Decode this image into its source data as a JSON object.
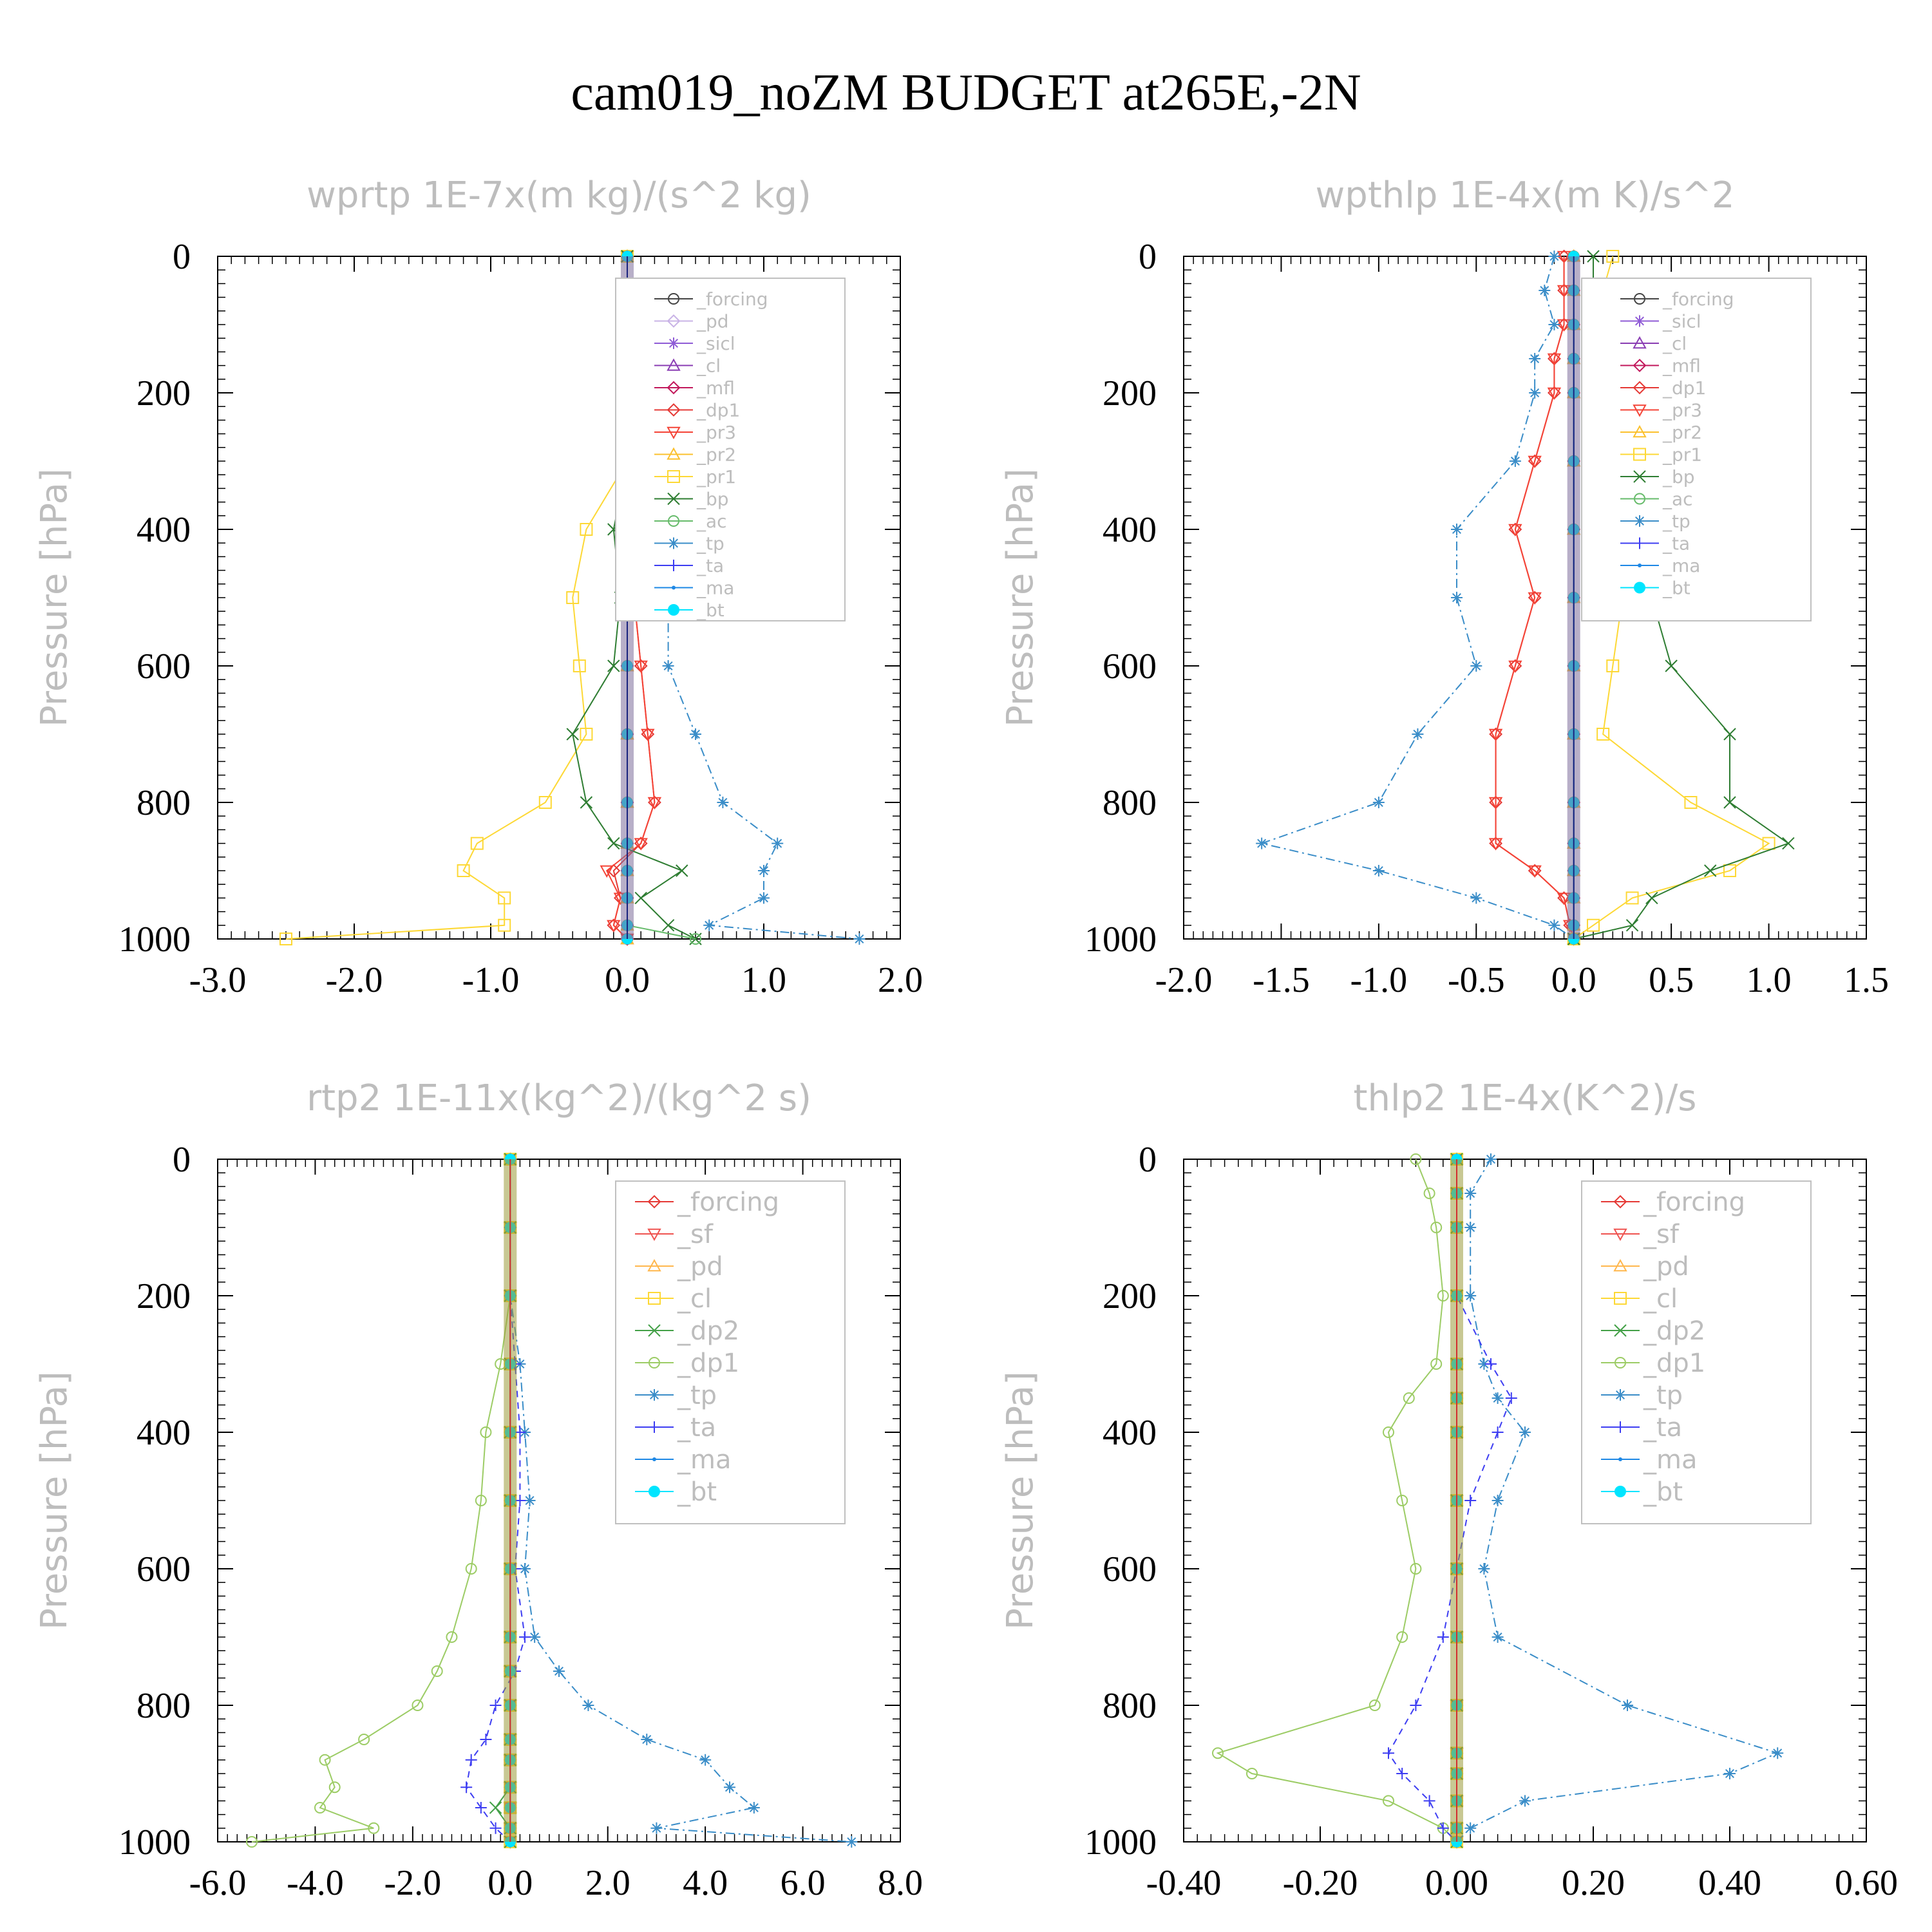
{
  "title": "cam019_noZM  BUDGET at265E,-2N",
  "colors": {
    "axis": "#000000",
    "label_grey": "#bdbdbd",
    "forcing": "#444444",
    "pd": "#c9b3e6",
    "sicl": "#8f5bd6",
    "cl": "#8a3db3",
    "mfl": "#c2185b",
    "dp1": "#e53935",
    "pr3": "#f44336",
    "pr2": "#fbc02d",
    "pr1": "#fdd835",
    "bp": "#2e7d32",
    "ac": "#66bb6a",
    "tp": "#3a8dc8",
    "ta": "#3d3df2",
    "ma": "#1e88e5",
    "bt": "#00e5ff",
    "r_forcing": "#e53935",
    "r_sf": "#ef5350",
    "r_pd": "#ffb74d",
    "r_cl": "#fdd835",
    "r_dp2": "#43a047",
    "r_dp1": "#9ccc65"
  },
  "chart_data": [
    {
      "type": "line",
      "title": "wprtp  1E-7x(m kg)/(s^2 kg)",
      "ylabel": "Pressure [hPa]",
      "xlim": [
        -3.0,
        2.0
      ],
      "ylim": [
        1000,
        0
      ],
      "xticks": [
        "-3.0",
        "-2.0",
        "-1.0",
        "0.0",
        "1.0",
        "2.0"
      ],
      "yticks": [
        "0",
        "200",
        "400",
        "600",
        "800",
        "1000"
      ],
      "legend_position": "top-right",
      "levels": [
        0,
        100,
        200,
        300,
        400,
        500,
        600,
        700,
        800,
        860,
        900,
        940,
        980,
        1000
      ],
      "series": [
        {
          "name": "_forcing",
          "values": [
            0,
            0,
            0,
            0,
            0,
            0,
            0,
            0,
            0,
            0,
            0,
            0,
            0,
            0
          ]
        },
        {
          "name": "_pd",
          "values": [
            0,
            0,
            0,
            0,
            0,
            0,
            0,
            0,
            0,
            0,
            0,
            0,
            0,
            0
          ]
        },
        {
          "name": "_sicl",
          "values": [
            0,
            0,
            0,
            0,
            0,
            0,
            0,
            0,
            0,
            0,
            0,
            0,
            0,
            0
          ]
        },
        {
          "name": "_cl",
          "values": [
            0,
            0,
            0,
            0,
            0,
            0,
            0,
            0,
            0,
            0,
            0,
            0,
            0,
            0
          ]
        },
        {
          "name": "_mfl",
          "values": [
            0,
            0,
            0,
            0,
            0,
            0,
            0,
            0,
            0,
            0,
            0,
            0,
            0,
            0
          ]
        },
        {
          "name": "_dp1",
          "values": [
            0,
            0,
            0,
            0,
            0.1,
            0.05,
            0.1,
            0.15,
            0.2,
            0.1,
            -0.1,
            -0.05,
            -0.1,
            0
          ]
        },
        {
          "name": "_pr3",
          "values": [
            0,
            0,
            0,
            0,
            0.05,
            0.05,
            0.1,
            0.15,
            0.2,
            0.1,
            -0.15,
            -0.05,
            -0.1,
            0
          ]
        },
        {
          "name": "_pr2",
          "values": [
            0,
            0,
            0,
            0,
            0,
            0,
            0,
            0,
            0,
            0,
            0,
            0,
            0,
            0
          ]
        },
        {
          "name": "_pr1",
          "values": [
            0,
            0,
            0,
            0,
            -0.3,
            -0.4,
            -0.35,
            -0.3,
            -0.6,
            -1.1,
            -1.2,
            -0.9,
            -0.9,
            -2.5
          ]
        },
        {
          "name": "_bp",
          "values": [
            0,
            0,
            0,
            0,
            -0.1,
            -0.05,
            -0.1,
            -0.4,
            -0.3,
            -0.1,
            0.4,
            0.1,
            0.3,
            0.5
          ]
        },
        {
          "name": "_ac",
          "values": [
            0,
            0,
            0,
            0,
            0,
            0,
            0,
            0,
            0,
            0,
            0,
            0,
            0,
            0.5
          ]
        },
        {
          "name": "_tp",
          "values": [
            0,
            0,
            0,
            0,
            0.2,
            0.3,
            0.3,
            0.5,
            0.7,
            1.1,
            1.0,
            1.0,
            0.6,
            1.7
          ]
        },
        {
          "name": "_ta",
          "values": [
            0,
            0,
            0,
            0,
            0,
            0,
            0,
            0,
            0,
            0,
            0,
            0,
            0,
            0
          ]
        },
        {
          "name": "_ma",
          "values": [
            0,
            0,
            0,
            0,
            0,
            0,
            0,
            0,
            0,
            0,
            0,
            0,
            0,
            0
          ]
        },
        {
          "name": "_bt",
          "values": [
            0,
            0,
            0,
            0,
            0,
            0,
            0,
            0,
            0,
            0,
            0,
            0,
            0,
            0
          ]
        }
      ]
    },
    {
      "type": "line",
      "title": "wpthlp  1E-4x(m K)/s^2",
      "ylabel": "Pressure [hPa]",
      "xlim": [
        -2.0,
        1.5
      ],
      "ylim": [
        1000,
        0
      ],
      "xticks": [
        "-2.0",
        "-1.5",
        "-1.0",
        "-0.5",
        "0.0",
        "0.5",
        "1.0",
        "1.5"
      ],
      "yticks": [
        "0",
        "200",
        "400",
        "600",
        "800",
        "1000"
      ],
      "legend_position": "top-right",
      "levels": [
        0,
        50,
        100,
        150,
        200,
        300,
        400,
        500,
        600,
        700,
        800,
        860,
        900,
        940,
        980,
        1000
      ],
      "series": [
        {
          "name": "_forcing",
          "values": [
            0,
            0,
            0,
            0,
            0,
            0,
            0,
            0,
            0,
            0,
            0,
            0,
            0,
            0,
            0,
            0
          ]
        },
        {
          "name": "_sicl",
          "values": [
            0,
            0,
            0,
            0,
            0,
            0,
            0,
            0,
            0,
            0,
            0,
            0,
            0,
            0,
            0,
            0
          ]
        },
        {
          "name": "_cl",
          "values": [
            0,
            0,
            0,
            0,
            0,
            0,
            0,
            0,
            0,
            0,
            0,
            0,
            0,
            0,
            0,
            0
          ]
        },
        {
          "name": "_mfl",
          "values": [
            0,
            0,
            0,
            0,
            0,
            0,
            0,
            0,
            0,
            0,
            0,
            0,
            0,
            0,
            0,
            0
          ]
        },
        {
          "name": "_dp1",
          "values": [
            -0.05,
            -0.05,
            -0.05,
            -0.1,
            -0.1,
            -0.2,
            -0.3,
            -0.2,
            -0.3,
            -0.4,
            -0.4,
            -0.4,
            -0.2,
            -0.05,
            -0.02,
            0
          ]
        },
        {
          "name": "_pr3",
          "values": [
            -0.05,
            -0.05,
            -0.05,
            -0.1,
            -0.1,
            -0.2,
            -0.3,
            -0.2,
            -0.3,
            -0.4,
            -0.4,
            -0.4,
            -0.2,
            -0.05,
            -0.02,
            0
          ]
        },
        {
          "name": "_pr2",
          "values": [
            0,
            0,
            0,
            0,
            0,
            0,
            0,
            0,
            0,
            0,
            0,
            0,
            0,
            0,
            0,
            0
          ]
        },
        {
          "name": "_pr1",
          "values": [
            0.2,
            0.15,
            0.1,
            0.15,
            0.1,
            0.1,
            0.25,
            0.25,
            0.2,
            0.15,
            0.6,
            1.0,
            0.8,
            0.3,
            0.1,
            0
          ]
        },
        {
          "name": "_bp",
          "values": [
            0.1,
            0.1,
            0.15,
            0.2,
            0.2,
            0.3,
            0.4,
            0.4,
            0.5,
            0.8,
            0.8,
            1.1,
            0.7,
            0.4,
            0.3,
            0
          ]
        },
        {
          "name": "_ac",
          "values": [
            0,
            0,
            0,
            0,
            0,
            0,
            0,
            0,
            0,
            0,
            0,
            0,
            0,
            0,
            0,
            0
          ]
        },
        {
          "name": "_tp",
          "values": [
            -0.1,
            -0.15,
            -0.1,
            -0.2,
            -0.2,
            -0.3,
            -0.6,
            -0.6,
            -0.5,
            -0.8,
            -1.0,
            -1.6,
            -1.0,
            -0.5,
            -0.1,
            0
          ]
        },
        {
          "name": "_ta",
          "values": [
            0,
            0,
            0,
            0,
            0,
            0,
            0,
            0,
            0,
            0,
            0,
            0,
            0,
            0,
            0,
            0
          ]
        },
        {
          "name": "_ma",
          "values": [
            0,
            0,
            0,
            0,
            0,
            0,
            0,
            0,
            0,
            0,
            0,
            0,
            0,
            0,
            0,
            0
          ]
        },
        {
          "name": "_bt",
          "values": [
            0,
            0,
            0,
            0,
            0,
            0,
            0,
            0,
            0,
            0,
            0,
            0,
            0,
            0,
            0,
            0
          ]
        }
      ]
    },
    {
      "type": "line",
      "title": "rtp2  1E-11x(kg^2)/(kg^2 s)",
      "ylabel": "Pressure [hPa]",
      "xlim": [
        -6.0,
        8.0
      ],
      "ylim": [
        1000,
        0
      ],
      "xticks": [
        "-6.0",
        "-4.0",
        "-2.0",
        "0.0",
        "2.0",
        "4.0",
        "6.0",
        "8.0"
      ],
      "yticks": [
        "0",
        "200",
        "400",
        "600",
        "800",
        "1000"
      ],
      "legend_position": "top-right",
      "levels": [
        0,
        100,
        200,
        300,
        400,
        500,
        600,
        700,
        750,
        800,
        850,
        880,
        920,
        950,
        980,
        1000
      ],
      "series": [
        {
          "name": "_forcing",
          "values": [
            0,
            0,
            0,
            0,
            0,
            0,
            0,
            0,
            0,
            0,
            0,
            0,
            0,
            0,
            0,
            0
          ]
        },
        {
          "name": "_sf",
          "values": [
            0,
            0,
            0,
            0,
            0,
            0,
            0,
            0,
            0,
            0,
            0,
            0,
            0,
            0,
            0,
            0
          ]
        },
        {
          "name": "_pd",
          "values": [
            0,
            0,
            0,
            0,
            0,
            0,
            0,
            0,
            0,
            0,
            0,
            0,
            0,
            0,
            0,
            0
          ]
        },
        {
          "name": "_cl",
          "values": [
            0,
            0,
            0,
            0,
            0,
            0,
            0,
            0,
            0,
            0,
            0,
            0,
            0,
            0,
            0,
            0
          ]
        },
        {
          "name": "_dp2",
          "values": [
            0,
            0,
            0,
            0,
            0,
            0,
            0,
            0,
            0,
            0,
            0,
            0,
            0,
            -0.3,
            0,
            0
          ]
        },
        {
          "name": "_dp1",
          "values": [
            0,
            0,
            0,
            -0.2,
            -0.5,
            -0.6,
            -0.8,
            -1.2,
            -1.5,
            -1.9,
            -3.0,
            -3.8,
            -3.6,
            -3.9,
            -2.8,
            -5.3
          ]
        },
        {
          "name": "_tp",
          "values": [
            0,
            0,
            0,
            0.2,
            0.3,
            0.4,
            0.3,
            0.5,
            1.0,
            1.6,
            2.8,
            4.0,
            4.5,
            5.0,
            3.0,
            7.0
          ]
        },
        {
          "name": "_ta",
          "values": [
            0,
            0,
            0,
            0.1,
            0.2,
            0.2,
            0.1,
            0.3,
            0.1,
            -0.3,
            -0.5,
            -0.8,
            -0.9,
            -0.6,
            -0.3,
            0
          ]
        },
        {
          "name": "_ma",
          "values": [
            0,
            0,
            0,
            0,
            0,
            0,
            0,
            0,
            0,
            0,
            0,
            0,
            0,
            0,
            0,
            0
          ]
        },
        {
          "name": "_bt",
          "values": [
            0,
            0,
            0,
            0,
            0,
            0,
            0,
            0,
            0,
            0,
            0,
            0,
            0,
            0,
            0,
            0
          ]
        }
      ]
    },
    {
      "type": "line",
      "title": "thlp2  1E-4x(K^2)/s",
      "ylabel": "Pressure [hPa]",
      "xlim": [
        -0.4,
        0.6
      ],
      "ylim": [
        1000,
        0
      ],
      "xticks": [
        "-0.40",
        "-0.20",
        "0.00",
        "0.20",
        "0.40",
        "0.60"
      ],
      "yticks": [
        "0",
        "200",
        "400",
        "600",
        "800",
        "1000"
      ],
      "legend_position": "top-right",
      "levels": [
        0,
        50,
        100,
        200,
        300,
        350,
        400,
        500,
        600,
        700,
        800,
        870,
        900,
        940,
        980,
        1000
      ],
      "series": [
        {
          "name": "_forcing",
          "values": [
            0,
            0,
            0,
            0,
            0,
            0,
            0,
            0,
            0,
            0,
            0,
            0,
            0,
            0,
            0,
            0
          ]
        },
        {
          "name": "_sf",
          "values": [
            0,
            0,
            0,
            0,
            0,
            0,
            0,
            0,
            0,
            0,
            0,
            0,
            0,
            0,
            0,
            0
          ]
        },
        {
          "name": "_pd",
          "values": [
            0,
            0,
            0,
            0,
            0,
            0,
            0,
            0,
            0,
            0,
            0,
            0,
            0,
            0,
            0,
            0
          ]
        },
        {
          "name": "_cl",
          "values": [
            0,
            0,
            0,
            0,
            0,
            0,
            0,
            0,
            0,
            0,
            0,
            0,
            0,
            0,
            0,
            0
          ]
        },
        {
          "name": "_dp2",
          "values": [
            0,
            0,
            0,
            0,
            0,
            0,
            0,
            0,
            0,
            0,
            0,
            0,
            0,
            0,
            0,
            0
          ]
        },
        {
          "name": "_dp1",
          "values": [
            -0.06,
            -0.04,
            -0.03,
            -0.02,
            -0.03,
            -0.07,
            -0.1,
            -0.08,
            -0.06,
            -0.08,
            -0.12,
            -0.35,
            -0.3,
            -0.1,
            -0.02,
            0
          ]
        },
        {
          "name": "_tp",
          "values": [
            0.05,
            0.02,
            0.02,
            0.02,
            0.04,
            0.06,
            0.1,
            0.06,
            0.04,
            0.06,
            0.25,
            0.47,
            0.4,
            0.1,
            0.02,
            0
          ]
        },
        {
          "name": "_ta",
          "values": [
            0,
            0,
            0,
            0,
            0.05,
            0.08,
            0.06,
            0.02,
            0,
            -0.02,
            -0.06,
            -0.1,
            -0.08,
            -0.04,
            -0.02,
            0
          ]
        },
        {
          "name": "_ma",
          "values": [
            0,
            0,
            0,
            0,
            0,
            0,
            0,
            0,
            0,
            0,
            0,
            0,
            0,
            0,
            0,
            0
          ]
        },
        {
          "name": "_bt",
          "values": [
            0,
            0,
            0,
            0,
            0,
            0,
            0,
            0,
            0,
            0,
            0,
            0,
            0,
            0,
            0,
            0
          ]
        }
      ]
    }
  ]
}
